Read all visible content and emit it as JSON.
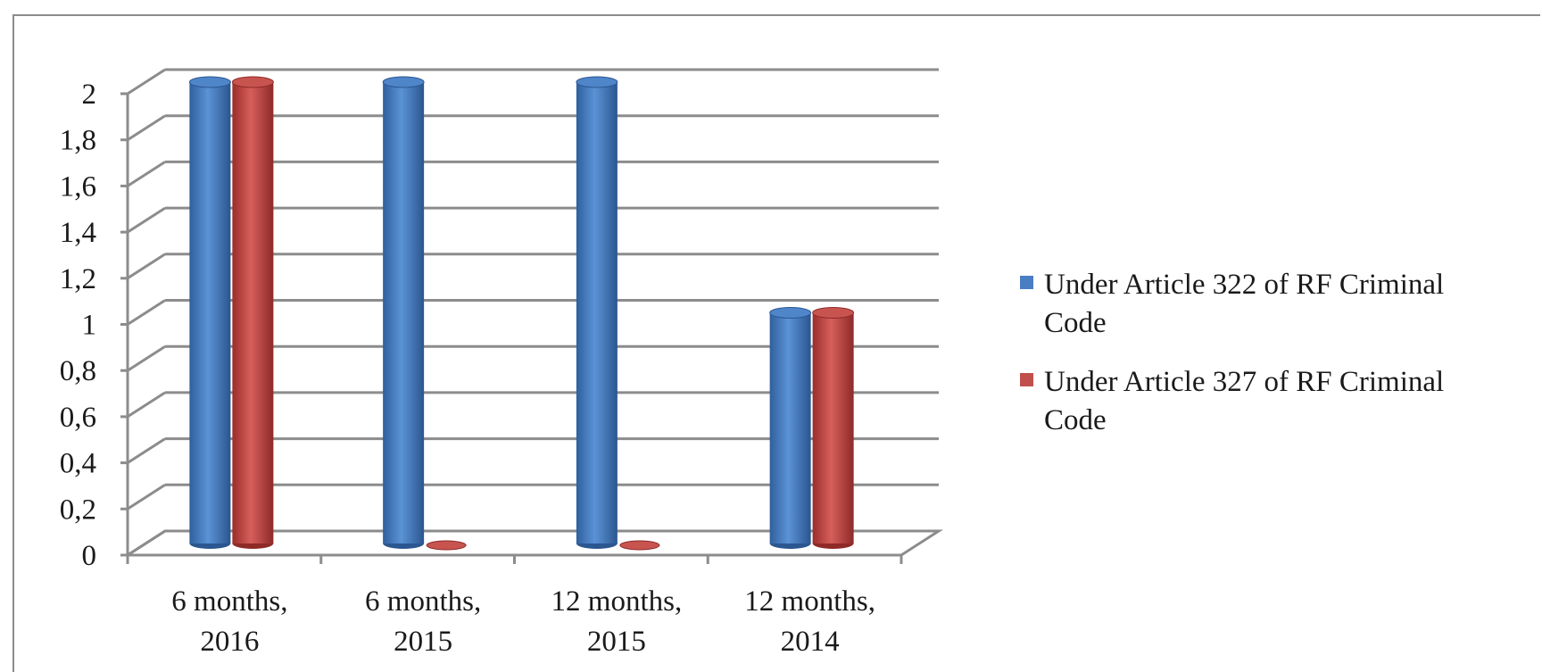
{
  "chart_data": {
    "type": "bar",
    "categories": [
      [
        "6 months,",
        "2016"
      ],
      [
        "6 months,",
        "2015"
      ],
      [
        "12 months,",
        "2015"
      ],
      [
        "12 months,",
        "2014"
      ]
    ],
    "series": [
      {
        "name": "Under Article 322 of RF Criminal Code",
        "name_lines": [
          "Under Article 322 of RF Criminal",
          "Code"
        ],
        "color": "#4a7ec2",
        "values": [
          2,
          2,
          2,
          1
        ]
      },
      {
        "name": "Under Article 327 of RF Criminal Code",
        "name_lines": [
          "Under Article 327 of RF Criminal",
          "Code"
        ],
        "color": "#c0504d",
        "values": [
          2,
          0,
          0,
          1
        ]
      }
    ],
    "ylim": [
      0,
      2
    ],
    "yticks": [
      "0",
      "0,2",
      "0,4",
      "0,6",
      "0,8",
      "1",
      "1,2",
      "1,4",
      "1,6",
      "1,8",
      "2"
    ],
    "grid": true,
    "legend": "right",
    "style": "3d-cylinder"
  }
}
